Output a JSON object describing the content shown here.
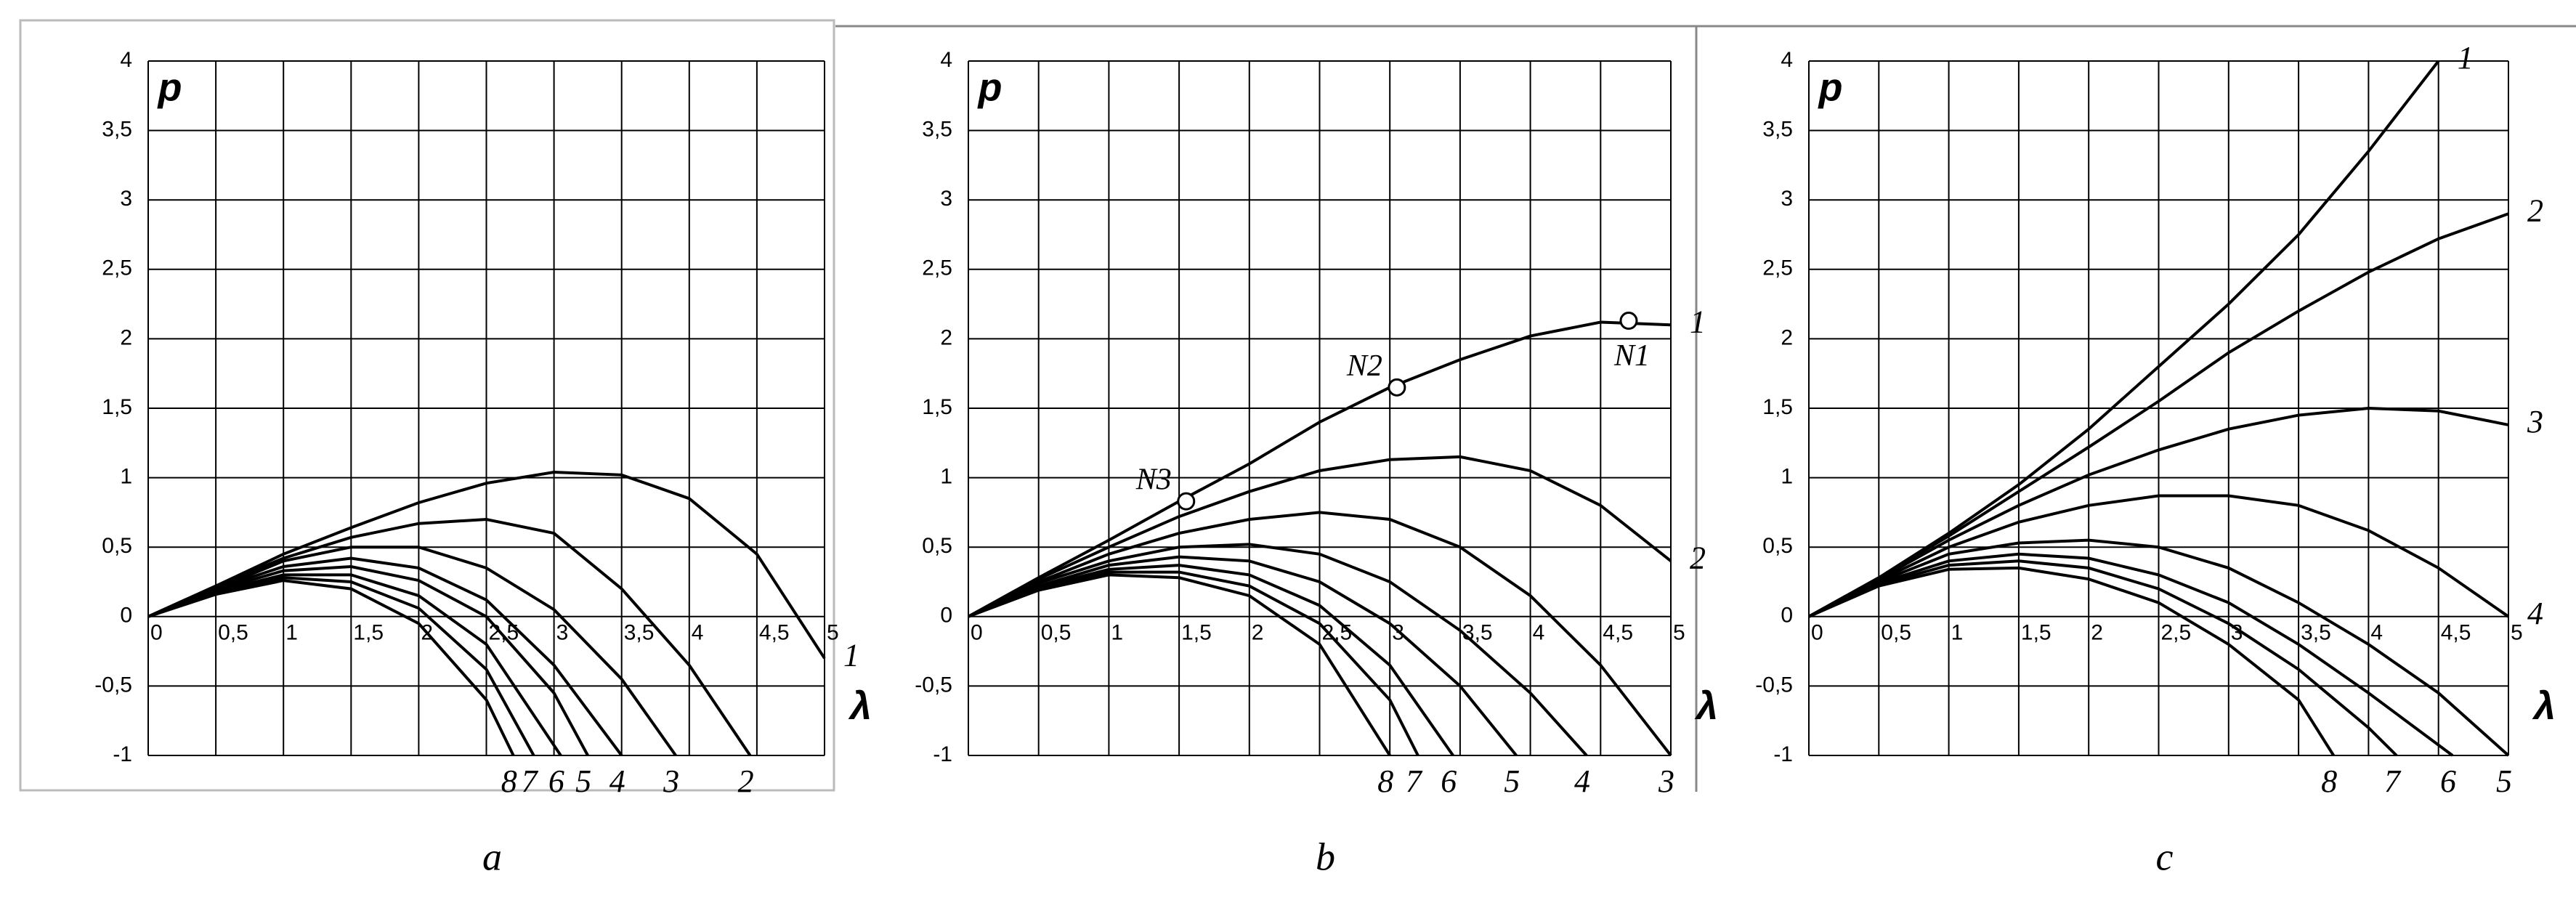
{
  "chart_data": [
    {
      "type": "line",
      "caption": "a",
      "ylabel": "p",
      "xlabel": "λ",
      "grid": true,
      "xlim": [
        0,
        5
      ],
      "ylim": [
        -1,
        4
      ],
      "xticks": [
        0,
        {
          "value": 0.5,
          "label": "0,5"
        },
        1,
        {
          "value": 1.5,
          "label": "1,5"
        },
        2,
        {
          "value": 2.5,
          "label": "2,5"
        },
        3,
        {
          "value": 3.5,
          "label": "3,5"
        },
        4,
        {
          "value": 4.5,
          "label": "4,5"
        },
        5
      ],
      "yticks": [
        -1,
        {
          "value": -0.5,
          "label": "-0,5"
        },
        0,
        {
          "value": 0.5,
          "label": "0,5"
        },
        1,
        {
          "value": 1.5,
          "label": "1,5"
        },
        2,
        {
          "value": 2.5,
          "label": "2,5"
        },
        3,
        {
          "value": 3.5,
          "label": "3,5"
        },
        4
      ],
      "series": [
        {
          "name": "1",
          "color": "#000000",
          "x": [
            0,
            0.5,
            1,
            1.5,
            2,
            2.5,
            3,
            3.5,
            4,
            4.5,
            5
          ],
          "values": [
            0,
            0.22,
            0.45,
            0.64,
            0.82,
            0.96,
            1.04,
            1.02,
            0.85,
            0.45,
            -0.3
          ]
        },
        {
          "name": "2",
          "color": "#000000",
          "x": [
            0,
            0.5,
            1,
            1.5,
            2,
            2.5,
            3,
            3.5,
            4,
            4.45
          ],
          "values": [
            0,
            0.22,
            0.42,
            0.57,
            0.67,
            0.7,
            0.6,
            0.2,
            -0.35,
            -1
          ]
        },
        {
          "name": "3",
          "color": "#000000",
          "x": [
            0,
            0.5,
            1,
            1.5,
            2,
            2.5,
            3,
            3.5,
            3.9
          ],
          "values": [
            0,
            0.2,
            0.4,
            0.5,
            0.5,
            0.35,
            0.05,
            -0.45,
            -1
          ]
        },
        {
          "name": "4",
          "color": "#000000",
          "x": [
            0,
            0.5,
            1,
            1.5,
            2,
            2.5,
            3,
            3.5
          ],
          "values": [
            0,
            0.2,
            0.36,
            0.42,
            0.35,
            0.12,
            -0.35,
            -1
          ]
        },
        {
          "name": "5",
          "color": "#000000",
          "x": [
            0,
            0.5,
            1,
            1.5,
            2,
            2.5,
            3,
            3.25
          ],
          "values": [
            0,
            0.19,
            0.33,
            0.36,
            0.26,
            0,
            -0.55,
            -1
          ]
        },
        {
          "name": "6",
          "color": "#000000",
          "x": [
            0,
            0.5,
            1,
            1.5,
            2,
            2.5,
            3.05
          ],
          "values": [
            0,
            0.18,
            0.3,
            0.3,
            0.15,
            -0.2,
            -1
          ]
        },
        {
          "name": "7",
          "color": "#000000",
          "x": [
            0,
            0.5,
            1,
            1.5,
            2,
            2.5,
            2.85
          ],
          "values": [
            0,
            0.17,
            0.28,
            0.25,
            0.06,
            -0.38,
            -1
          ]
        },
        {
          "name": "8",
          "color": "#000000",
          "x": [
            0,
            0.5,
            1,
            1.5,
            2,
            2.5,
            2.7
          ],
          "values": [
            0,
            0.16,
            0.26,
            0.2,
            -0.05,
            -0.6,
            -1
          ]
        }
      ]
    },
    {
      "type": "line",
      "caption": "b",
      "ylabel": "p",
      "xlabel": "λ",
      "grid": true,
      "xlim": [
        0,
        5
      ],
      "ylim": [
        -1,
        4
      ],
      "xticks": [
        0,
        {
          "value": 0.5,
          "label": "0,5"
        },
        1,
        {
          "value": 1.5,
          "label": "1,5"
        },
        2,
        {
          "value": 2.5,
          "label": "2,5"
        },
        3,
        {
          "value": 3.5,
          "label": "3,5"
        },
        4,
        {
          "value": 4.5,
          "label": "4,5"
        },
        5
      ],
      "yticks": [
        -1,
        {
          "value": -0.5,
          "label": "-0,5"
        },
        0,
        {
          "value": 0.5,
          "label": "0,5"
        },
        1,
        {
          "value": 1.5,
          "label": "1,5"
        },
        2,
        {
          "value": 2.5,
          "label": "2,5"
        },
        3,
        {
          "value": 3.5,
          "label": "3,5"
        },
        4
      ],
      "series": [
        {
          "name": "1",
          "color": "#000000",
          "x": [
            0,
            0.5,
            1,
            1.5,
            2,
            2.5,
            3,
            3.5,
            4,
            4.5,
            5
          ],
          "values": [
            0,
            0.28,
            0.55,
            0.83,
            1.1,
            1.4,
            1.65,
            1.85,
            2.02,
            2.12,
            2.1
          ]
        },
        {
          "name": "2",
          "color": "#000000",
          "x": [
            0,
            0.5,
            1,
            1.5,
            2,
            2.5,
            3,
            3.5,
            4,
            4.5,
            5
          ],
          "values": [
            0,
            0.27,
            0.5,
            0.72,
            0.9,
            1.05,
            1.13,
            1.15,
            1.05,
            0.8,
            0.4
          ]
        },
        {
          "name": "3",
          "color": "#000000",
          "x": [
            0,
            0.5,
            1,
            1.5,
            2,
            2.5,
            3,
            3.5,
            4,
            4.5,
            5
          ],
          "values": [
            0,
            0.25,
            0.45,
            0.6,
            0.7,
            0.75,
            0.7,
            0.5,
            0.15,
            -0.35,
            -1
          ]
        },
        {
          "name": "4",
          "color": "#000000",
          "x": [
            0,
            0.5,
            1,
            1.5,
            2,
            2.5,
            3,
            3.5,
            4,
            4.4
          ],
          "values": [
            0,
            0.24,
            0.4,
            0.5,
            0.52,
            0.45,
            0.25,
            -0.1,
            -0.55,
            -1
          ]
        },
        {
          "name": "5",
          "color": "#000000",
          "x": [
            0,
            0.5,
            1,
            1.5,
            2,
            2.5,
            3,
            3.5,
            3.9
          ],
          "values": [
            0,
            0.22,
            0.37,
            0.43,
            0.4,
            0.25,
            -0.05,
            -0.5,
            -1
          ]
        },
        {
          "name": "6",
          "color": "#000000",
          "x": [
            0,
            0.5,
            1,
            1.5,
            2,
            2.5,
            3,
            3.45
          ],
          "values": [
            0,
            0.21,
            0.34,
            0.37,
            0.3,
            0.08,
            -0.35,
            -1
          ]
        },
        {
          "name": "7",
          "color": "#000000",
          "x": [
            0,
            0.5,
            1,
            1.5,
            2,
            2.5,
            3,
            3.2
          ],
          "values": [
            0,
            0.2,
            0.32,
            0.32,
            0.22,
            -0.05,
            -0.6,
            -1
          ]
        },
        {
          "name": "8",
          "color": "#000000",
          "x": [
            0,
            0.5,
            1,
            1.5,
            2,
            2.5,
            3
          ],
          "values": [
            0,
            0.19,
            0.3,
            0.28,
            0.15,
            -0.2,
            -1
          ]
        }
      ],
      "points": [
        {
          "label": "N1",
          "x": 4.7,
          "y": 2.13
        },
        {
          "label": "N2",
          "x": 3.05,
          "y": 1.65
        },
        {
          "label": "N3",
          "x": 1.55,
          "y": 0.83
        }
      ]
    },
    {
      "type": "line",
      "caption": "c",
      "ylabel": "p",
      "xlabel": "λ",
      "grid": true,
      "xlim": [
        0,
        5
      ],
      "ylim": [
        -1,
        4
      ],
      "xticks": [
        0,
        {
          "value": 0.5,
          "label": "0,5"
        },
        1,
        {
          "value": 1.5,
          "label": "1,5"
        },
        2,
        {
          "value": 2.5,
          "label": "2,5"
        },
        3,
        {
          "value": 3.5,
          "label": "3,5"
        },
        4,
        {
          "value": 4.5,
          "label": "4,5"
        },
        5
      ],
      "yticks": [
        -1,
        {
          "value": -0.5,
          "label": "-0,5"
        },
        0,
        {
          "value": 0.5,
          "label": "0,5"
        },
        1,
        {
          "value": 1.5,
          "label": "1,5"
        },
        2,
        {
          "value": 2.5,
          "label": "2,5"
        },
        3,
        {
          "value": 3.5,
          "label": "3,5"
        },
        4
      ],
      "series": [
        {
          "name": "1",
          "color": "#000000",
          "x": [
            0,
            0.5,
            1,
            1.5,
            2,
            2.5,
            3,
            3.5,
            4,
            4.5
          ],
          "values": [
            0,
            0.28,
            0.6,
            0.95,
            1.35,
            1.8,
            2.25,
            2.75,
            3.35,
            4
          ]
        },
        {
          "name": "2",
          "color": "#000000",
          "x": [
            0,
            0.5,
            1,
            1.5,
            2,
            2.5,
            3,
            3.5,
            4,
            4.5,
            5
          ],
          "values": [
            0,
            0.28,
            0.58,
            0.9,
            1.22,
            1.55,
            1.9,
            2.2,
            2.48,
            2.72,
            2.9
          ]
        },
        {
          "name": "3",
          "color": "#000000",
          "x": [
            0,
            0.5,
            1,
            1.5,
            2,
            2.5,
            3,
            3.5,
            4,
            4.5,
            5
          ],
          "values": [
            0,
            0.27,
            0.55,
            0.8,
            1.02,
            1.2,
            1.35,
            1.45,
            1.5,
            1.48,
            1.38
          ]
        },
        {
          "name": "4",
          "color": "#000000",
          "x": [
            0,
            0.5,
            1,
            1.5,
            2,
            2.5,
            3,
            3.5,
            4,
            4.5,
            5
          ],
          "values": [
            0,
            0.26,
            0.5,
            0.68,
            0.8,
            0.87,
            0.87,
            0.8,
            0.62,
            0.35,
            0
          ]
        },
        {
          "name": "5",
          "color": "#000000",
          "x": [
            0,
            0.5,
            1,
            1.5,
            2,
            2.5,
            3,
            3.5,
            4,
            4.5,
            5
          ],
          "values": [
            0,
            0.25,
            0.45,
            0.53,
            0.55,
            0.5,
            0.35,
            0.1,
            -0.2,
            -0.55,
            -1
          ]
        },
        {
          "name": "6",
          "color": "#000000",
          "x": [
            0,
            0.5,
            1,
            1.5,
            2,
            2.5,
            3,
            3.5,
            4,
            4.6
          ],
          "values": [
            0,
            0.24,
            0.4,
            0.45,
            0.42,
            0.3,
            0.1,
            -0.2,
            -0.55,
            -1
          ]
        },
        {
          "name": "7",
          "color": "#000000",
          "x": [
            0,
            0.5,
            1,
            1.5,
            2,
            2.5,
            3,
            3.5,
            4,
            4.2
          ],
          "values": [
            0,
            0.23,
            0.37,
            0.4,
            0.35,
            0.2,
            -0.05,
            -0.38,
            -0.8,
            -1
          ]
        },
        {
          "name": "8",
          "color": "#000000",
          "x": [
            0,
            0.5,
            1,
            1.5,
            2,
            2.5,
            3,
            3.5,
            3.75
          ],
          "values": [
            0,
            0.22,
            0.34,
            0.35,
            0.27,
            0.1,
            -0.2,
            -0.6,
            -1
          ]
        }
      ]
    }
  ]
}
